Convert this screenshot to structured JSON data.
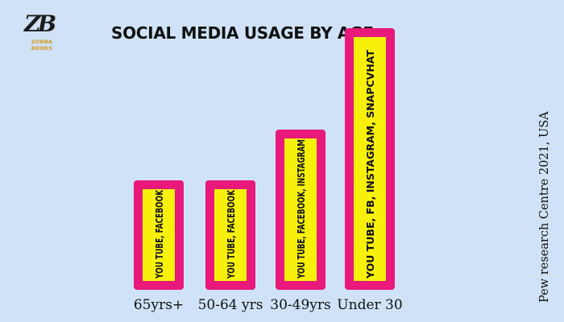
{
  "logo": {
    "mark": "ZB",
    "text": "ZORBA BOOKS"
  },
  "chart_data": {
    "type": "bar",
    "title": "SOCIAL MEDIA USAGE BY AGE",
    "categories": [
      "65yrs+",
      "50-64 yrs",
      "30-49yrs",
      "Under 30"
    ],
    "values": [
      2,
      2,
      3,
      5
    ],
    "bar_labels": [
      "YOU TUBE, FACEBOOK",
      "YOU TUBE,  FACEBOOK",
      "YOU TUBE, FACEBOOK, INSTAGRAM",
      "YOU TUBE, FB, INSTAGRAM, SNAPCVHAT"
    ],
    "source": "Pew research Centre 2021, USA",
    "colors": {
      "bar_border": "#e8197a",
      "bar_fill": "#f7f00a",
      "background": "#cfe2f7"
    }
  }
}
